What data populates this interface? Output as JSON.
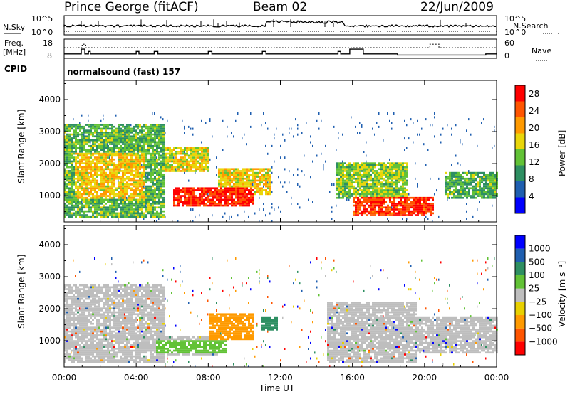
{
  "header": {
    "station": "Prince George (fitACF)",
    "beam": "Beam 02",
    "date": "22/Jun/2009"
  },
  "status": {
    "nsky_label": "N.Sky",
    "nsearch_label": "N.Search",
    "freq_label": "Freq.",
    "freq_unit": "[MHz]",
    "nave_label": "Nave",
    "cpid_label": "CPID",
    "cpid_text": "normalsound (fast) 157",
    "noise_ticks": [
      "10^5",
      "10^0"
    ],
    "freq_ticks": [
      "18",
      "8"
    ],
    "nave_ticks": [
      "60",
      "0"
    ],
    "freq_steps": [
      [
        0.0,
        10.3
      ],
      [
        0.95,
        12.8
      ],
      [
        1.15,
        10.3
      ],
      [
        1.35,
        11.6
      ],
      [
        1.45,
        10.3
      ],
      [
        4.0,
        11.6
      ],
      [
        4.15,
        10.3
      ],
      [
        5.0,
        11.6
      ],
      [
        5.2,
        10.3
      ],
      [
        8.0,
        11.6
      ],
      [
        8.2,
        10.3
      ],
      [
        11.0,
        11.6
      ],
      [
        11.2,
        10.3
      ],
      [
        15.2,
        11.6
      ],
      [
        15.35,
        10.3
      ],
      [
        15.85,
        12.8
      ],
      [
        16.6,
        10.3
      ],
      [
        18.5,
        9.7
      ],
      [
        23.0,
        9.7
      ],
      [
        23.4,
        10.3
      ],
      [
        24.0,
        10.3
      ]
    ],
    "nave_steps": [
      [
        0.0,
        33
      ],
      [
        1.0,
        44
      ],
      [
        1.2,
        33
      ],
      [
        20.3,
        44
      ],
      [
        20.8,
        33
      ],
      [
        24.0,
        33
      ]
    ]
  },
  "colors": {
    "power_scale": [
      "#0000ff",
      "#1f5fb0",
      "#2e8f62",
      "#62c236",
      "#e9d60a",
      "#ff9a00",
      "#ff5500",
      "#ff0000"
    ],
    "velocity_scale": [
      "#ff0000",
      "#ff5500",
      "#ff9a00",
      "#e8d000",
      "#bebebe",
      "#62c236",
      "#2e8f62",
      "#1f5fb0",
      "#0000ff"
    ],
    "ground_scatter": "#bebebe"
  },
  "chart_data": [
    {
      "type": "heatmap",
      "name": "power",
      "xlabel": "Time UT",
      "ylabel": "Slant Range [km]",
      "ylim": [
        180,
        4600
      ],
      "y_ticks": [
        "1000",
        "2000",
        "3000",
        "4000"
      ],
      "y_tick_values": [
        1000,
        2000,
        3000,
        4000
      ],
      "colorbar_label": "Power [dB]",
      "colorbar_ticks": [
        "4",
        "8",
        "12",
        "16",
        "20",
        "24",
        "28"
      ],
      "colorbar_range": [
        0,
        30
      ],
      "echo_regions": [
        {
          "t0": 0.0,
          "t1": 5.5,
          "r0": 300,
          "r1": 3200,
          "level": 12
        },
        {
          "t0": 0.5,
          "t1": 4.5,
          "r0": 900,
          "r1": 2300,
          "level": 18
        },
        {
          "t0": 5.5,
          "t1": 8.0,
          "r0": 1700,
          "r1": 2500,
          "level": 17
        },
        {
          "t0": 6.0,
          "t1": 10.5,
          "r0": 650,
          "r1": 1250,
          "level": 27
        },
        {
          "t0": 8.5,
          "t1": 11.5,
          "r0": 1000,
          "r1": 1800,
          "level": 18
        },
        {
          "t0": 16.0,
          "t1": 20.5,
          "r0": 350,
          "r1": 900,
          "level": 26
        },
        {
          "t0": 15.0,
          "t1": 19.0,
          "r0": 900,
          "r1": 2000,
          "level": 14
        },
        {
          "t0": 21.0,
          "t1": 24.0,
          "r0": 900,
          "r1": 1700,
          "level": 12
        }
      ]
    },
    {
      "type": "heatmap",
      "name": "velocity",
      "xlabel": "Time UT",
      "ylabel": "Slant Range [km]",
      "ylim": [
        180,
        4600
      ],
      "y_ticks": [
        "1000",
        "2000",
        "3000",
        "4000"
      ],
      "y_tick_values": [
        1000,
        2000,
        3000,
        4000
      ],
      "x_ticks": [
        "00:00",
        "04:00",
        "08:00",
        "12:00",
        "16:00",
        "20:00",
        "00:00"
      ],
      "x_tick_hours": [
        0,
        4,
        8,
        12,
        16,
        20,
        24
      ],
      "colorbar_label": "Velocity [m s⁻¹]",
      "colorbar_ticks": [
        "1000",
        "500",
        "100",
        "25",
        "−25",
        "−100",
        "−500",
        "−1000"
      ],
      "echo_regions": [
        {
          "t0": 0.0,
          "t1": 5.5,
          "r0": 300,
          "r1": 2700,
          "class": "ground"
        },
        {
          "t0": 5.5,
          "t1": 8.5,
          "r0": 500,
          "r1": 1100,
          "class": "ground"
        },
        {
          "t0": 5.0,
          "t1": 9.0,
          "r0": 600,
          "r1": 1000,
          "class": "+100"
        },
        {
          "t0": 8.0,
          "t1": 10.5,
          "r0": 1000,
          "r1": 1800,
          "class": "-100"
        },
        {
          "t0": 10.8,
          "t1": 11.8,
          "r0": 1300,
          "r1": 1700,
          "class": "+500"
        },
        {
          "t0": 14.5,
          "t1": 19.5,
          "r0": 300,
          "r1": 2200,
          "class": "ground"
        },
        {
          "t0": 19.5,
          "t1": 24.0,
          "r0": 600,
          "r1": 1700,
          "class": "ground"
        }
      ]
    }
  ]
}
